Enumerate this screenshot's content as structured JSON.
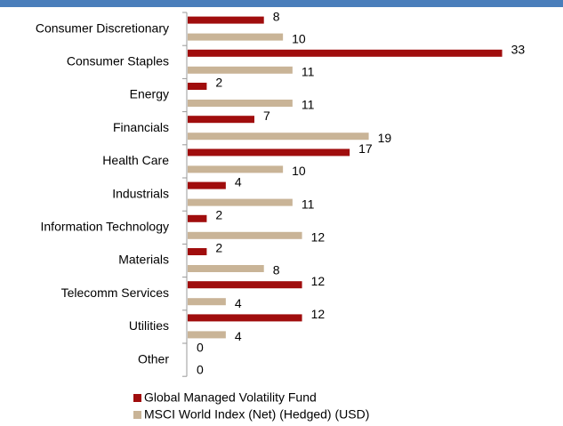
{
  "chart_data": {
    "type": "hbar",
    "categories": [
      "Consumer Discretionary",
      "Consumer Staples",
      "Energy",
      "Financials",
      "Health Care",
      "Industrials",
      "Information Technology",
      "Materials",
      "Telecomm Services",
      "Utilities",
      "Other"
    ],
    "series": [
      {
        "name": "Global Managed Volatility Fund",
        "color": "#a00d0d",
        "values": [
          8,
          33,
          2,
          7,
          17,
          4,
          2,
          2,
          12,
          12,
          0
        ]
      },
      {
        "name": "MSCI World Index (Net) (Hedged) (USD)",
        "color": "#c9b497",
        "values": [
          10,
          11,
          11,
          19,
          10,
          11,
          12,
          8,
          4,
          4,
          0
        ]
      }
    ],
    "xlim": [
      0,
      35
    ]
  }
}
